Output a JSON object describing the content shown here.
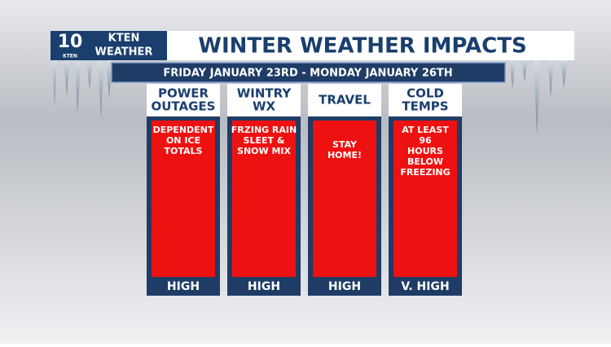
{
  "logo": {
    "number": "10",
    "station": "KTEN",
    "brand_lines": [
      "KTEN",
      "WEATHER"
    ]
  },
  "header": {
    "title": "WINTER WEATHER IMPACTS",
    "subtitle": "FRIDAY JANUARY 23RD - MONDAY JANUARY 26TH"
  },
  "columns": [
    {
      "title_lines": [
        "POWER",
        "OUTAGES"
      ],
      "body_lines": [
        "DEPENDENT",
        "ON ICE",
        "TOTALS"
      ],
      "level": "HIGH"
    },
    {
      "title_lines": [
        "WINTRY",
        "WX"
      ],
      "body_lines": [
        "FRZING RAIN",
        "SLEET &",
        "SNOW MIX"
      ],
      "level": "HIGH"
    },
    {
      "title_lines": [
        "TRAVEL"
      ],
      "body_lines": [
        "STAY",
        "HOME!"
      ],
      "level": "HIGH"
    },
    {
      "title_lines": [
        "COLD",
        "TEMPS"
      ],
      "body_lines": [
        "AT LEAST",
        "96",
        "HOURS",
        "BELOW",
        "FREEZING"
      ],
      "level": "V. HIGH"
    }
  ]
}
